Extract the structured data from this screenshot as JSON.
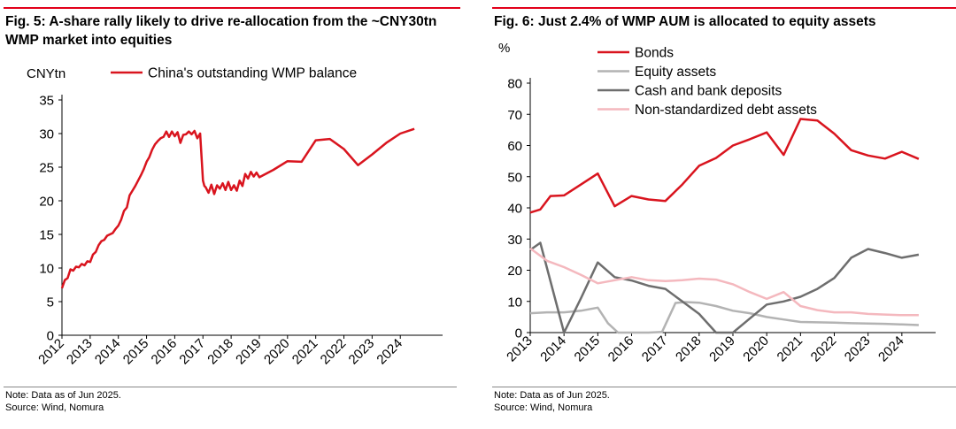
{
  "colors": {
    "accent": "#e2001a",
    "bonds": "#d9141e",
    "equity": "#b3b3b3",
    "cash": "#6e6e6e",
    "nonstd": "#f4b8be"
  },
  "left": {
    "title": "Fig. 5: A-share rally likely to drive re-allocation from the ~CNY30tn WMP market into equities",
    "note": "Note: Data as of Jun 2025.",
    "source": "Source: Wind, Nomura"
  },
  "right": {
    "title": "Fig. 6: Just 2.4% of WMP AUM is allocated to equity assets",
    "note": "Note: Data as of Jun 2025.",
    "source": "Source: Wind, Nomura"
  },
  "chart_data": [
    {
      "type": "line",
      "title": "Fig. 5: A-share rally likely to drive re-allocation from the ~CNY30tn WMP market into equities",
      "ylabel": "CNYtn",
      "ylim": [
        0,
        35
      ],
      "yticks": [
        0,
        5,
        10,
        15,
        20,
        25,
        30,
        35
      ],
      "xlim": [
        2012,
        2025.5
      ],
      "xticks": [
        "2012",
        "2013",
        "2014",
        "2015",
        "2016",
        "2017",
        "2018",
        "2019",
        "2020",
        "2021",
        "2022",
        "2023",
        "2024"
      ],
      "grid": false,
      "legend_position": "top",
      "series": [
        {
          "name": "China's outstanding WMP balance",
          "color": "#d9141e",
          "x": [
            2012.0,
            2012.1,
            2012.2,
            2012.3,
            2012.4,
            2012.5,
            2012.6,
            2012.7,
            2012.8,
            2012.9,
            2013.0,
            2013.1,
            2013.2,
            2013.3,
            2013.4,
            2013.5,
            2013.6,
            2013.7,
            2013.8,
            2013.9,
            2014.0,
            2014.1,
            2014.2,
            2014.3,
            2014.4,
            2014.5,
            2014.6,
            2014.7,
            2014.8,
            2014.9,
            2015.0,
            2015.1,
            2015.2,
            2015.3,
            2015.4,
            2015.5,
            2015.6,
            2015.7,
            2015.8,
            2015.9,
            2016.0,
            2016.1,
            2016.2,
            2016.3,
            2016.4,
            2016.5,
            2016.6,
            2016.7,
            2016.8,
            2016.9,
            2017.0,
            2017.05,
            2017.1,
            2017.2,
            2017.3,
            2017.4,
            2017.5,
            2017.6,
            2017.7,
            2017.8,
            2017.9,
            2018.0,
            2018.1,
            2018.2,
            2018.3,
            2018.4,
            2018.5,
            2018.6,
            2018.7,
            2018.8,
            2018.9,
            2019.0,
            2019.5,
            2020.0,
            2020.5,
            2021.0,
            2021.5,
            2022.0,
            2022.5,
            2023.0,
            2023.5,
            2024.0,
            2024.5
          ],
          "y": [
            7.0,
            8.2,
            8.5,
            9.8,
            9.6,
            10.2,
            10.1,
            10.6,
            10.4,
            11.0,
            10.9,
            12.0,
            12.4,
            13.4,
            14.0,
            14.2,
            14.8,
            15.0,
            15.2,
            15.8,
            16.3,
            17.2,
            18.5,
            19.0,
            20.8,
            21.5,
            22.2,
            23.0,
            23.8,
            24.7,
            25.8,
            26.5,
            27.6,
            28.4,
            28.9,
            29.3,
            29.5,
            30.3,
            29.5,
            30.3,
            29.6,
            30.2,
            28.6,
            29.8,
            29.9,
            30.3,
            29.9,
            30.4,
            29.3,
            30.0,
            23.0,
            22.2,
            22.0,
            21.2,
            22.4,
            21.0,
            22.3,
            21.8,
            22.6,
            21.6,
            22.8,
            21.6,
            22.3,
            21.5,
            23.0,
            22.2,
            24.0,
            23.3,
            24.3,
            23.6,
            24.2,
            23.5,
            24.6,
            25.9,
            25.8,
            29.0,
            29.2,
            27.7,
            25.3,
            26.9,
            28.6,
            30.0,
            30.7
          ]
        }
      ]
    },
    {
      "type": "line",
      "title": "Fig. 6: Just 2.4% of WMP AUM is allocated to equity assets",
      "ylabel": "%",
      "ylim": [
        0,
        80
      ],
      "yticks": [
        0,
        10,
        20,
        30,
        40,
        50,
        60,
        70,
        80
      ],
      "xlim": [
        2013,
        2025.0
      ],
      "xticks": [
        "2013",
        "2014",
        "2015",
        "2016",
        "2017",
        "2018",
        "2019",
        "2020",
        "2021",
        "2022",
        "2023",
        "2024"
      ],
      "grid": false,
      "legend_position": "top-left",
      "series": [
        {
          "name": "Bonds",
          "color": "#d9141e",
          "x": [
            2013.0,
            2013.3,
            2013.6,
            2014.0,
            2014.5,
            2015.0,
            2015.5,
            2016.0,
            2016.5,
            2017.0,
            2017.5,
            2018.0,
            2018.5,
            2019.0,
            2019.5,
            2020.0,
            2020.5,
            2021.0,
            2021.5,
            2022.0,
            2022.5,
            2023.0,
            2023.5,
            2024.0,
            2024.5
          ],
          "y": [
            38.5,
            39.5,
            43.8,
            44.0,
            47.5,
            51.0,
            40.5,
            43.8,
            42.7,
            42.2,
            47.5,
            53.5,
            56.0,
            60.0,
            62.0,
            64.2,
            57.0,
            68.5,
            68.0,
            63.8,
            58.5,
            56.8,
            55.8,
            58.0,
            55.7
          ]
        },
        {
          "name": "Equity assets",
          "color": "#b3b3b3",
          "x": [
            2013.0,
            2013.5,
            2014.0,
            2014.5,
            2015.0,
            2015.3,
            2015.6,
            2016.0,
            2016.5,
            2016.9,
            2017.3,
            2017.6,
            2018.0,
            2018.5,
            2019.0,
            2019.5,
            2020.0,
            2020.5,
            2021.0,
            2021.5,
            2022.0,
            2022.5,
            2023.0,
            2023.5,
            2024.0,
            2024.5
          ],
          "y": [
            6.2,
            6.5,
            6.5,
            7.0,
            8.0,
            3.0,
            0.0,
            0.0,
            0.0,
            0.2,
            9.5,
            9.8,
            9.6,
            8.5,
            7.0,
            6.2,
            5.0,
            4.2,
            3.4,
            3.3,
            3.2,
            3.0,
            2.9,
            2.8,
            2.6,
            2.4
          ]
        },
        {
          "name": "Cash and bank deposits",
          "color": "#6e6e6e",
          "x": [
            2013.0,
            2013.3,
            2014.0,
            2014.5,
            2015.0,
            2015.5,
            2016.0,
            2016.5,
            2017.0,
            2017.5,
            2018.0,
            2018.5,
            2019.0,
            2019.5,
            2020.0,
            2020.5,
            2021.0,
            2021.5,
            2022.0,
            2022.5,
            2023.0,
            2023.5,
            2024.0,
            2024.5
          ],
          "y": [
            26.5,
            28.8,
            0.0,
            11.0,
            22.5,
            17.8,
            16.7,
            15.0,
            14.0,
            10.0,
            6.0,
            0.0,
            0.0,
            4.5,
            9.0,
            10.0,
            11.5,
            14.0,
            17.5,
            24.0,
            26.8,
            25.5,
            24.0,
            25.0
          ]
        },
        {
          "name": "Non-standardized debt assets",
          "color": "#f4b8be",
          "x": [
            2013.0,
            2013.5,
            2014.0,
            2014.5,
            2015.0,
            2015.5,
            2016.0,
            2016.5,
            2017.0,
            2017.5,
            2018.0,
            2018.5,
            2019.0,
            2019.5,
            2020.0,
            2020.5,
            2021.0,
            2021.5,
            2022.0,
            2022.5,
            2023.0,
            2023.5,
            2024.0,
            2024.5
          ],
          "y": [
            27.0,
            23.0,
            21.0,
            18.5,
            15.8,
            16.8,
            17.8,
            16.8,
            16.5,
            16.8,
            17.3,
            17.0,
            15.5,
            13.0,
            10.8,
            13.0,
            8.5,
            7.2,
            6.5,
            6.5,
            6.0,
            5.8,
            5.6,
            5.6
          ]
        }
      ]
    }
  ]
}
